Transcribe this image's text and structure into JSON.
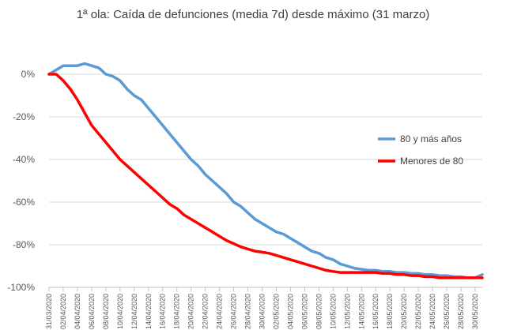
{
  "chart_data": {
    "type": "line",
    "title": "1ª ola: Caída de defunciones (media 7d) desde máximo (31 marzo)",
    "xlabel": "",
    "ylabel": "",
    "ylim": [
      -100,
      20
    ],
    "yticks": [
      {
        "value": 0,
        "label": "0%"
      },
      {
        "value": -20,
        "label": "-20%"
      },
      {
        "value": -40,
        "label": "-40%"
      },
      {
        "value": -60,
        "label": "-60%"
      },
      {
        "value": -80,
        "label": "-80%"
      },
      {
        "value": -100,
        "label": "-100%"
      }
    ],
    "x_tick_labels": [
      "31/03/2020",
      "02/04/2020",
      "04/04/2020",
      "06/04/2020",
      "08/04/2020",
      "10/04/2020",
      "12/04/2020",
      "14/04/2020",
      "16/04/2020",
      "18/04/2020",
      "20/04/2020",
      "22/04/2020",
      "24/04/2020",
      "26/04/2020",
      "28/04/2020",
      "30/04/2020",
      "02/05/2020",
      "04/05/2020",
      "06/05/2020",
      "08/05/2020",
      "10/05/2020",
      "12/05/2020",
      "14/05/2020",
      "16/05/2020",
      "18/05/2020",
      "20/05/2020",
      "22/05/2020",
      "24/05/2020",
      "26/05/2020",
      "28/05/2020",
      "30/05/2020"
    ],
    "grid": "horizontal",
    "legend_position": "right",
    "series": [
      {
        "name": "80 y más años",
        "color": "#5B9BD5",
        "values": [
          0,
          2,
          4,
          4,
          4,
          5,
          4,
          3,
          0,
          -1,
          -3,
          -7,
          -10,
          -12,
          -16,
          -20,
          -24,
          -28,
          -32,
          -36,
          -40,
          -43,
          -47,
          -50,
          -53,
          -56,
          -60,
          -62,
          -65,
          -68,
          -70,
          -72,
          -74,
          -75,
          -77,
          -79,
          -81,
          -83,
          -84,
          -86,
          -87,
          -89,
          -90,
          -91,
          -91.5,
          -92,
          -92,
          -92.5,
          -92.5,
          -93,
          -93,
          -93.5,
          -93.5,
          -94,
          -94,
          -94.5,
          -94.5,
          -95,
          -95,
          -95.5,
          -95.5,
          -94
        ]
      },
      {
        "name": "Menores de 80",
        "color": "#FF0000",
        "values": [
          0,
          0,
          -3,
          -7,
          -12,
          -18,
          -24,
          -28,
          -32,
          -36,
          -40,
          -43,
          -46,
          -49,
          -52,
          -55,
          -58,
          -61,
          -63,
          -66,
          -68,
          -70,
          -72,
          -74,
          -76,
          -78,
          -79.5,
          -81,
          -82,
          -83,
          -83.5,
          -84,
          -85,
          -86,
          -87,
          -88,
          -89,
          -90,
          -91,
          -92,
          -92.5,
          -93,
          -93,
          -93,
          -93,
          -93,
          -93,
          -93.5,
          -93.5,
          -94,
          -94,
          -94.5,
          -94.5,
          -95,
          -95,
          -95.5,
          -95.5,
          -95.5,
          -95.5,
          -95.5,
          -95.5,
          -95.5
        ]
      }
    ]
  }
}
